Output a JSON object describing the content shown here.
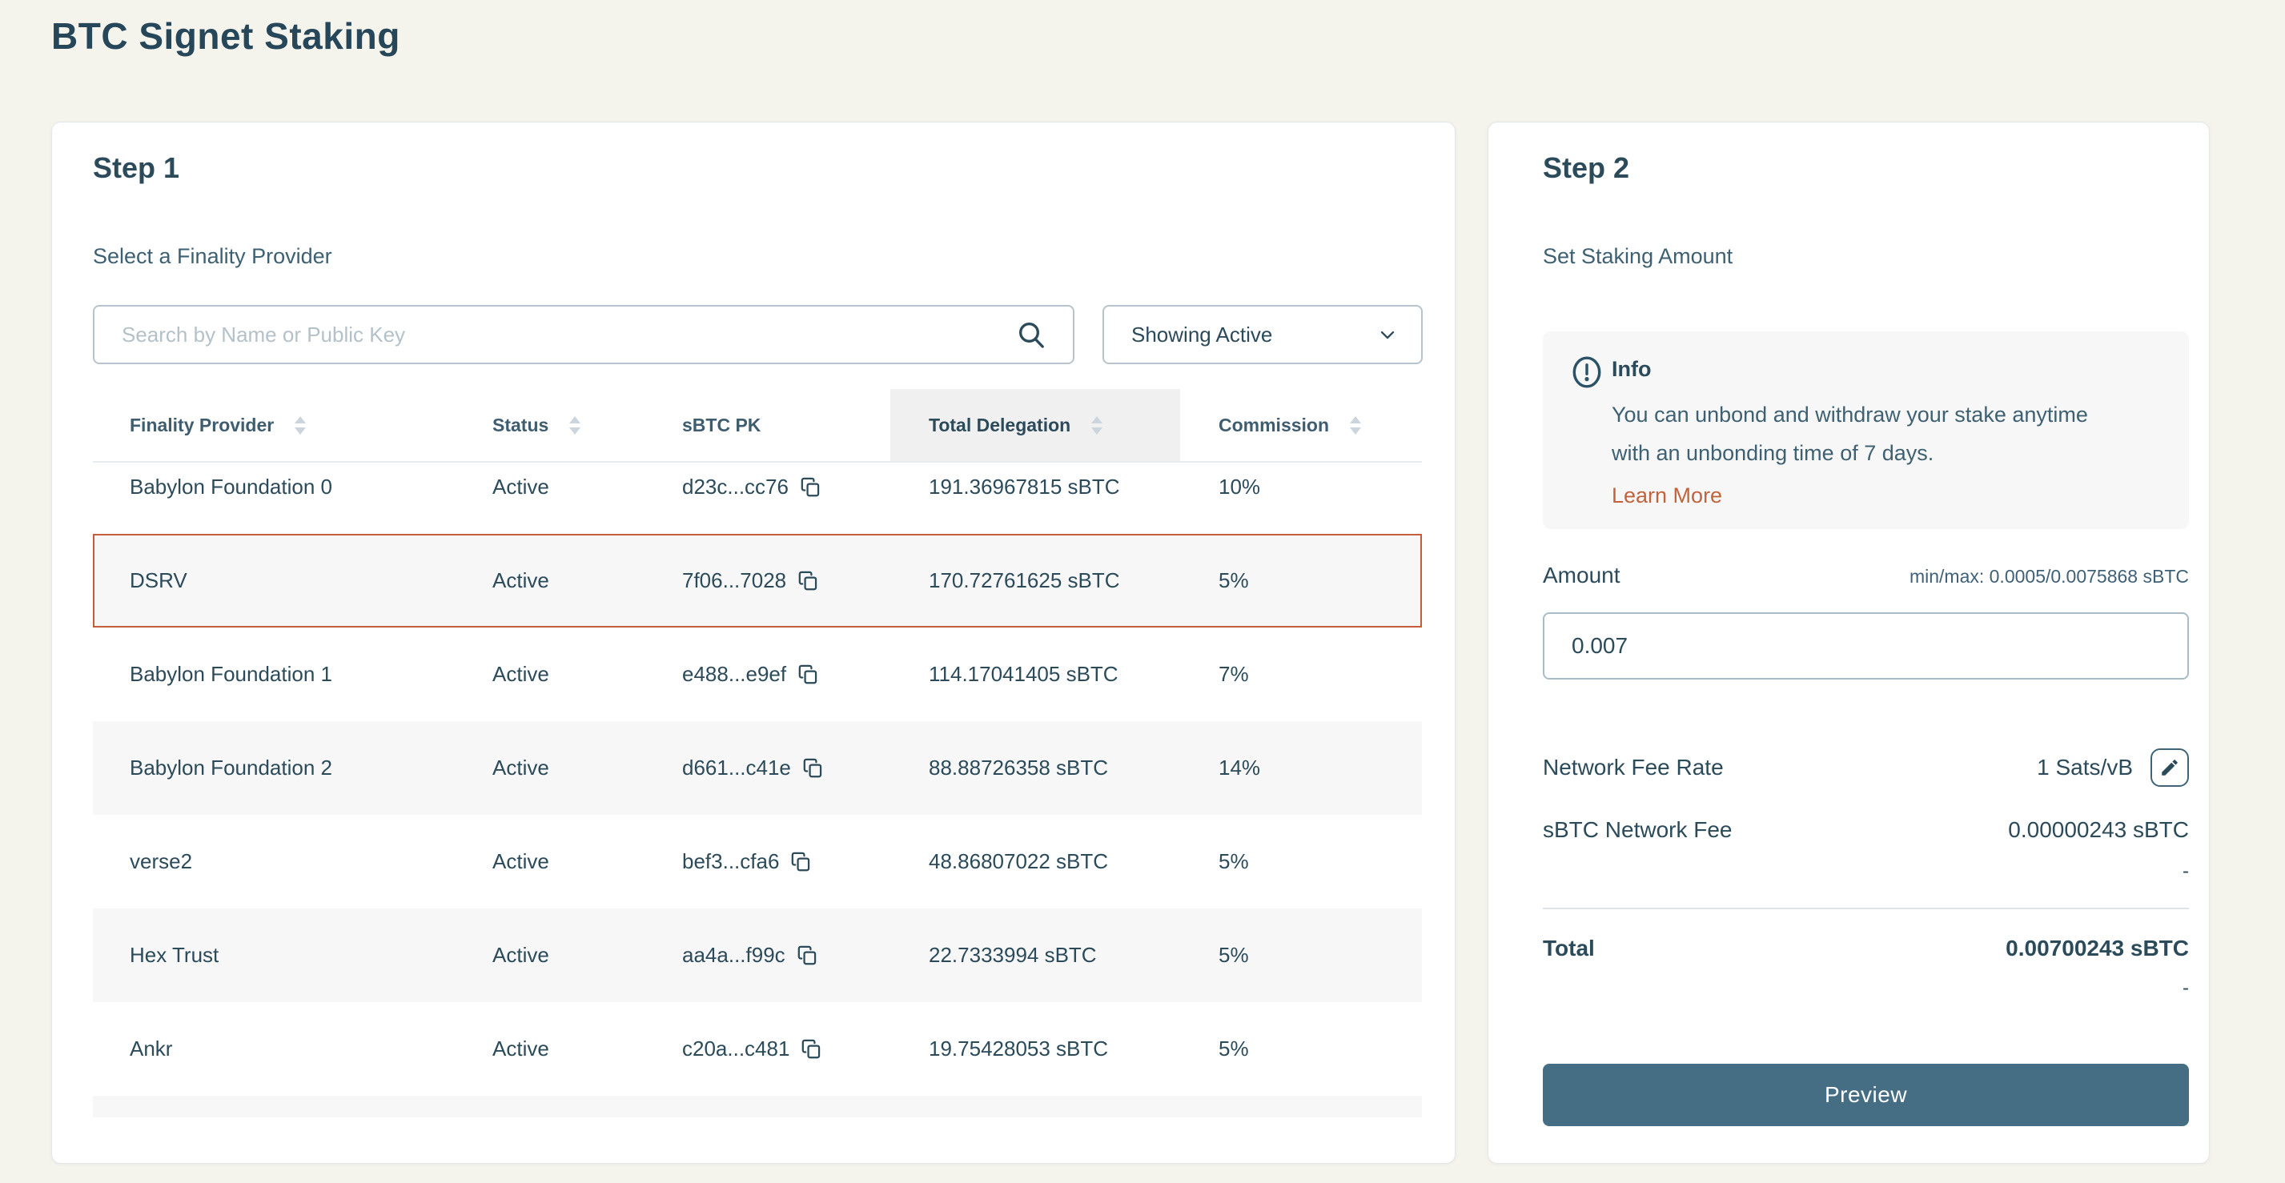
{
  "page": {
    "title": "BTC Signet Staking"
  },
  "colors": {
    "heading": "#26465a",
    "accent_orange": "#c45d39",
    "link_orange": "#c2633c",
    "button_blue": "#456e84",
    "zebra_row": "#f7f7f7"
  },
  "step1": {
    "heading": "Step 1",
    "subheading": "Select a Finality Provider",
    "search": {
      "placeholder": "Search by Name or Public Key",
      "value": "",
      "icon": "search-icon"
    },
    "filter": {
      "selected": "Showing Active",
      "icon": "chevron-down-icon"
    },
    "table": {
      "columns": [
        {
          "label": "Finality Provider",
          "sortable": true
        },
        {
          "label": "Status",
          "sortable": true
        },
        {
          "label": "sBTC PK",
          "sortable": false
        },
        {
          "label": "Total Delegation",
          "sortable": true,
          "highlighted": true
        },
        {
          "label": "Commission",
          "sortable": true
        }
      ],
      "rows": [
        {
          "name": "Babylon Foundation 0",
          "status": "Active",
          "pk": "d23c...cc76",
          "total_delegation": "191.36967815 sBTC",
          "commission": "10%",
          "selected": false
        },
        {
          "name": "DSRV",
          "status": "Active",
          "pk": "7f06...7028",
          "total_delegation": "170.72761625 sBTC",
          "commission": "5%",
          "selected": true
        },
        {
          "name": "Babylon Foundation 1",
          "status": "Active",
          "pk": "e488...e9ef",
          "total_delegation": "114.17041405 sBTC",
          "commission": "7%",
          "selected": false
        },
        {
          "name": "Babylon Foundation 2",
          "status": "Active",
          "pk": "d661...c41e",
          "total_delegation": "88.88726358 sBTC",
          "commission": "14%",
          "selected": false
        },
        {
          "name": "verse2",
          "status": "Active",
          "pk": "bef3...cfa6",
          "total_delegation": "48.86807022 sBTC",
          "commission": "5%",
          "selected": false
        },
        {
          "name": "Hex Trust",
          "status": "Active",
          "pk": "aa4a...f99c",
          "total_delegation": "22.7333994 sBTC",
          "commission": "5%",
          "selected": false
        },
        {
          "name": "Ankr",
          "status": "Active",
          "pk": "c20a...c481",
          "total_delegation": "19.75428053 sBTC",
          "commission": "5%",
          "selected": false
        }
      ]
    }
  },
  "step2": {
    "heading": "Step 2",
    "subheading": "Set Staking Amount",
    "info": {
      "icon": "info-icon",
      "title": "Info",
      "body": "You can unbond and withdraw your stake anytime with an unbonding time of 7 days.",
      "link": "Learn More"
    },
    "amount": {
      "label": "Amount",
      "minmax": "min/max: 0.0005/0.0075868 sBTC",
      "value": "0.007"
    },
    "fees": {
      "network_fee_rate_label": "Network Fee Rate",
      "network_fee_rate_value": "1 Sats/vB",
      "edit_icon": "pencil-icon",
      "sbtc_network_fee_label": "sBTC Network Fee",
      "sbtc_network_fee_value": "0.00000243 sBTC",
      "sbtc_network_fee_secondary": "-",
      "total_label": "Total",
      "total_value": "0.00700243 sBTC",
      "total_secondary": "-"
    },
    "preview_label": "Preview"
  }
}
